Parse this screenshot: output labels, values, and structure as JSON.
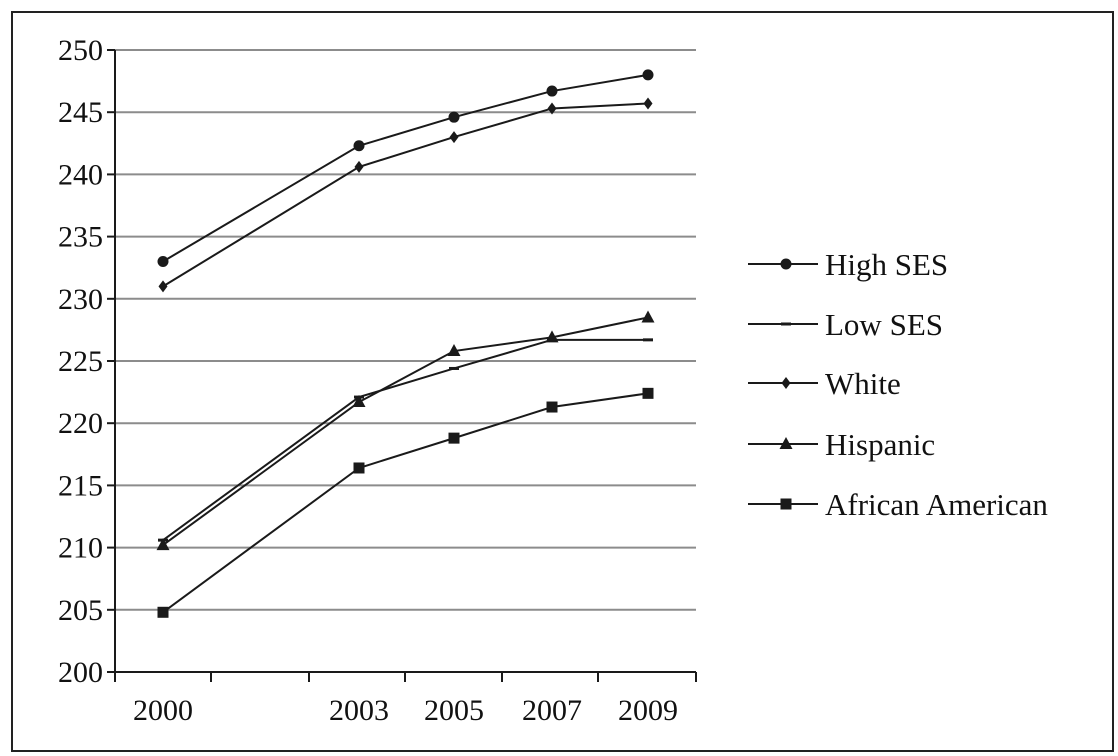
{
  "chart_data": {
    "type": "line",
    "title": "",
    "xlabel": "",
    "ylabel": "",
    "x": [
      2000,
      2003,
      2005,
      2007,
      2009
    ],
    "x_tick_labels": [
      "2000",
      "2003",
      "2005",
      "2007",
      "2009"
    ],
    "ylim": [
      200,
      250
    ],
    "y_ticks": [
      200,
      205,
      210,
      215,
      220,
      225,
      230,
      235,
      240,
      245,
      250
    ],
    "y_tick_labels": [
      "200",
      "205",
      "210",
      "215",
      "220",
      "225",
      "230",
      "235",
      "240",
      "245",
      "250"
    ],
    "grid": "horizontal",
    "legend_position": "right",
    "series": [
      {
        "name": "High SES",
        "marker": "circle",
        "values": [
          233.0,
          242.3,
          244.6,
          246.7,
          248.0
        ]
      },
      {
        "name": "Low SES",
        "marker": "dash",
        "values": [
          210.6,
          222.1,
          224.4,
          226.7,
          226.7
        ]
      },
      {
        "name": "White",
        "marker": "diamond",
        "values": [
          231.0,
          240.6,
          243.0,
          245.3,
          245.7
        ]
      },
      {
        "name": "Hispanic",
        "marker": "triangle",
        "values": [
          210.2,
          221.7,
          225.8,
          226.9,
          228.5
        ]
      },
      {
        "name": "African American",
        "marker": "square",
        "values": [
          204.8,
          216.4,
          218.8,
          221.3,
          222.4
        ]
      }
    ],
    "line_color": "#1a1a1a",
    "grid_color": "#8c8c8c"
  }
}
